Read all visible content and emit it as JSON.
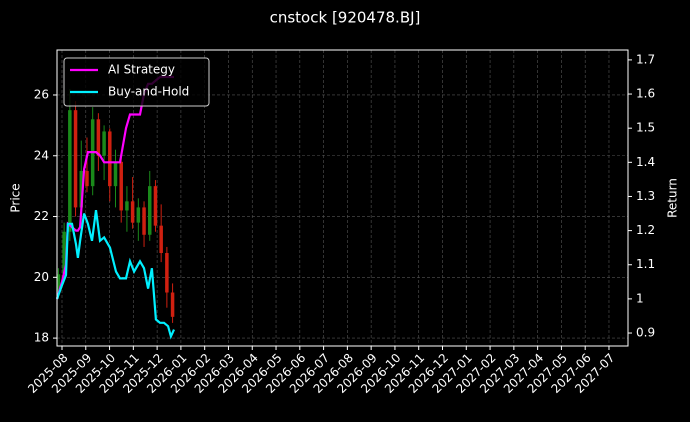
{
  "chart_data": {
    "type": "candlestick",
    "title": "cnstock [920478.BJ]",
    "ylabel": "Price",
    "y2label": "Return",
    "grid": true,
    "legend": "upper left",
    "xlim": [
      -0.21,
      23.8
    ],
    "xticks": [
      {
        "value": 0,
        "label": "2025-08"
      },
      {
        "value": 1,
        "label": "2025-09"
      },
      {
        "value": 2,
        "label": "2025-10"
      },
      {
        "value": 3,
        "label": "2025-11"
      },
      {
        "value": 4,
        "label": "2025-12"
      },
      {
        "value": 5,
        "label": "2026-01"
      },
      {
        "value": 6,
        "label": "2026-02"
      },
      {
        "value": 7,
        "label": "2026-03"
      },
      {
        "value": 8,
        "label": "2026-04"
      },
      {
        "value": 9,
        "label": "2026-05"
      },
      {
        "value": 10,
        "label": "2026-06"
      },
      {
        "value": 11,
        "label": "2026-07"
      },
      {
        "value": 12,
        "label": "2026-08"
      },
      {
        "value": 13,
        "label": "2026-09"
      },
      {
        "value": 14,
        "label": "2026-10"
      },
      {
        "value": 15,
        "label": "2026-11"
      },
      {
        "value": 16,
        "label": "2026-12"
      },
      {
        "value": 17,
        "label": "2027-01"
      },
      {
        "value": 18,
        "label": "2027-02"
      },
      {
        "value": 19,
        "label": "2027-03"
      },
      {
        "value": 20,
        "label": "2027-04"
      },
      {
        "value": 21,
        "label": "2027-05"
      },
      {
        "value": 22,
        "label": "2027-06"
      },
      {
        "value": 23,
        "label": "2027-07"
      }
    ],
    "ylim": [
      17.74,
      27.48
    ],
    "yticks": [
      18,
      20,
      22,
      24,
      26
    ],
    "y2lim": [
      0.862,
      1.729
    ],
    "y2ticks": [
      0.9,
      1.0,
      1.1,
      1.2,
      1.3,
      1.4,
      1.5,
      1.6,
      1.7
    ],
    "candles": {
      "up_color": "#1a8a1a",
      "down_color": "#d02010",
      "x": [
        -0.15,
        0.09,
        0.33,
        0.57,
        0.81,
        1.05,
        1.29,
        1.53,
        1.77,
        2.01,
        2.25,
        2.49,
        2.73,
        2.97,
        3.21,
        3.45,
        3.69,
        3.93,
        4.17,
        4.41,
        4.65
      ],
      "open": [
        19.5,
        20.1,
        21.5,
        25.5,
        22.3,
        23.5,
        23.0,
        25.2,
        24.0,
        24.8,
        23.0,
        23.8,
        22.2,
        22.5,
        21.8,
        22.3,
        21.4,
        23.0,
        21.7,
        20.8,
        19.5
      ],
      "high": [
        20.3,
        21.8,
        26.2,
        25.8,
        24.5,
        24.6,
        25.6,
        25.4,
        25.0,
        24.9,
        24.2,
        24.0,
        23.0,
        23.3,
        22.6,
        22.5,
        23.5,
        23.2,
        22.4,
        21.0,
        19.8
      ],
      "low": [
        19.3,
        20.0,
        21.2,
        22.0,
        21.8,
        22.8,
        22.7,
        23.5,
        23.2,
        22.5,
        22.3,
        21.8,
        21.5,
        21.6,
        21.2,
        21.0,
        21.2,
        21.5,
        20.5,
        19.0,
        18.5
      ],
      "close": [
        20.1,
        21.5,
        25.5,
        22.3,
        23.5,
        23.0,
        25.2,
        24.0,
        24.8,
        23.0,
        23.8,
        22.2,
        22.5,
        21.8,
        22.3,
        21.4,
        23.0,
        21.7,
        20.8,
        19.5,
        18.7
      ]
    },
    "x": [
      -0.21,
      0,
      0.17,
      0.25,
      0.42,
      0.59,
      0.67,
      0.76,
      0.93,
      1.09,
      1.26,
      1.43,
      1.6,
      1.77,
      2.02,
      2.27,
      2.44,
      2.69,
      2.86,
      3.03,
      3.28,
      3.45,
      3.62,
      3.78,
      3.95,
      4.12,
      4.29,
      4.46,
      4.58,
      4.71
    ],
    "series": [
      {
        "name": "AI Strategy",
        "color": "#ff00ff",
        "axis": "y2",
        "values": [
          1.0,
          1.05,
          1.1,
          1.22,
          1.21,
          1.2,
          1.2,
          1.21,
          1.38,
          1.43,
          1.43,
          1.43,
          1.42,
          1.4,
          1.4,
          1.4,
          1.4,
          1.5,
          1.54,
          1.54,
          1.54,
          1.6,
          1.63,
          1.63,
          1.64,
          1.65,
          1.65,
          1.65,
          1.65,
          1.65
        ]
      },
      {
        "name": "Buy-and-Hold",
        "color": "#00f0ff",
        "axis": "y2",
        "values": [
          1.0,
          1.04,
          1.07,
          1.22,
          1.22,
          1.16,
          1.12,
          1.17,
          1.25,
          1.22,
          1.17,
          1.26,
          1.17,
          1.18,
          1.15,
          1.08,
          1.06,
          1.06,
          1.11,
          1.08,
          1.11,
          1.09,
          1.03,
          1.09,
          0.94,
          0.93,
          0.93,
          0.92,
          0.89,
          0.91
        ]
      }
    ]
  }
}
